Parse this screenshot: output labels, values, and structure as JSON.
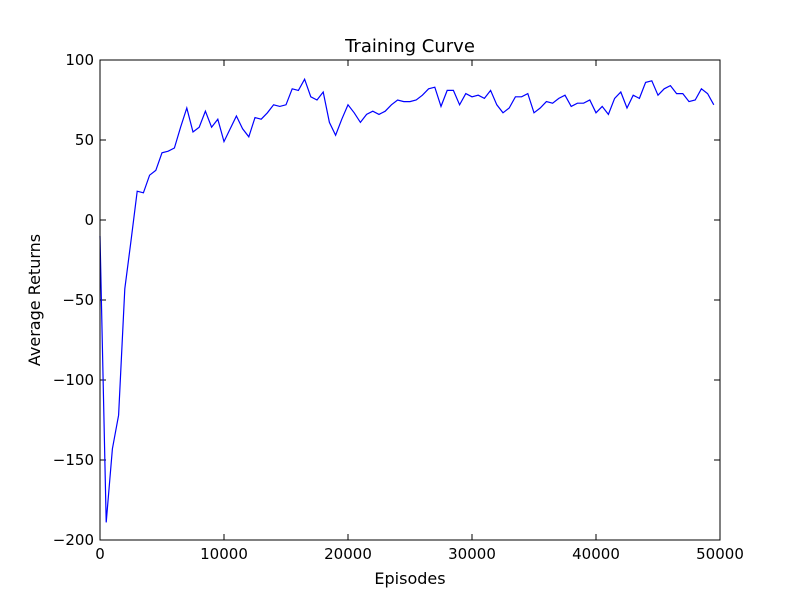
{
  "chart_data": {
    "type": "line",
    "title": "Training Curve",
    "xlabel": "Episodes",
    "ylabel": "Average Returns",
    "xlim": [
      0,
      50000
    ],
    "ylim": [
      -200,
      100
    ],
    "xticks": [
      0,
      10000,
      20000,
      30000,
      40000,
      50000
    ],
    "yticks": [
      -200,
      -150,
      -100,
      -50,
      0,
      50,
      100
    ],
    "grid": false,
    "line_color": "#0000ff",
    "series": [
      {
        "x": [
          0,
          500,
          1000,
          1500,
          2000,
          2500,
          3000,
          3500,
          4000,
          4500,
          5000,
          5500,
          6000,
          6500,
          7000,
          7500,
          8000,
          8500,
          9000,
          9500,
          10000,
          10500,
          11000,
          11500,
          12000,
          12500,
          13000,
          13500,
          14000,
          14500,
          15000,
          15500,
          16000,
          16500,
          17000,
          17500,
          18000,
          18500,
          19000,
          19500,
          20000,
          20500,
          21000,
          21500,
          22000,
          22500,
          23000,
          23500,
          24000,
          24500,
          25000,
          25500,
          26000,
          26500,
          27000,
          27500,
          28000,
          28500,
          29000,
          29500,
          30000,
          30500,
          31000,
          31500,
          32000,
          32500,
          33000,
          33500,
          34000,
          34500,
          35000,
          35500,
          36000,
          36500,
          37000,
          37500,
          38000,
          38500,
          39000,
          39500,
          40000,
          40500,
          41000,
          41500,
          42000,
          42500,
          43000,
          43500,
          44000,
          44500,
          45000,
          45500,
          46000,
          46500,
          47000,
          47500,
          48000,
          48500,
          49000,
          49500
        ],
        "y": [
          -10,
          -189,
          -143,
          -122,
          -43,
          -13,
          18,
          17,
          28,
          31,
          42,
          43,
          45,
          58,
          70,
          55,
          58,
          68,
          58,
          63,
          49,
          57,
          65,
          57,
          52,
          64,
          63,
          67,
          72,
          71,
          72,
          82,
          81,
          88,
          77,
          75,
          80,
          61,
          53,
          63,
          72,
          67,
          61,
          66,
          68,
          66,
          68,
          72,
          75,
          74,
          74,
          75,
          78,
          82,
          83,
          71,
          81,
          81,
          72,
          79,
          77,
          78,
          76,
          81,
          72,
          67,
          70,
          77,
          77,
          79,
          67,
          70,
          74,
          73,
          76,
          78,
          71,
          73,
          73,
          75,
          67,
          71,
          66,
          76,
          80,
          70,
          78,
          76,
          86,
          87,
          78,
          82,
          84,
          79,
          79,
          74,
          75,
          82,
          79,
          72
        ]
      }
    ]
  }
}
